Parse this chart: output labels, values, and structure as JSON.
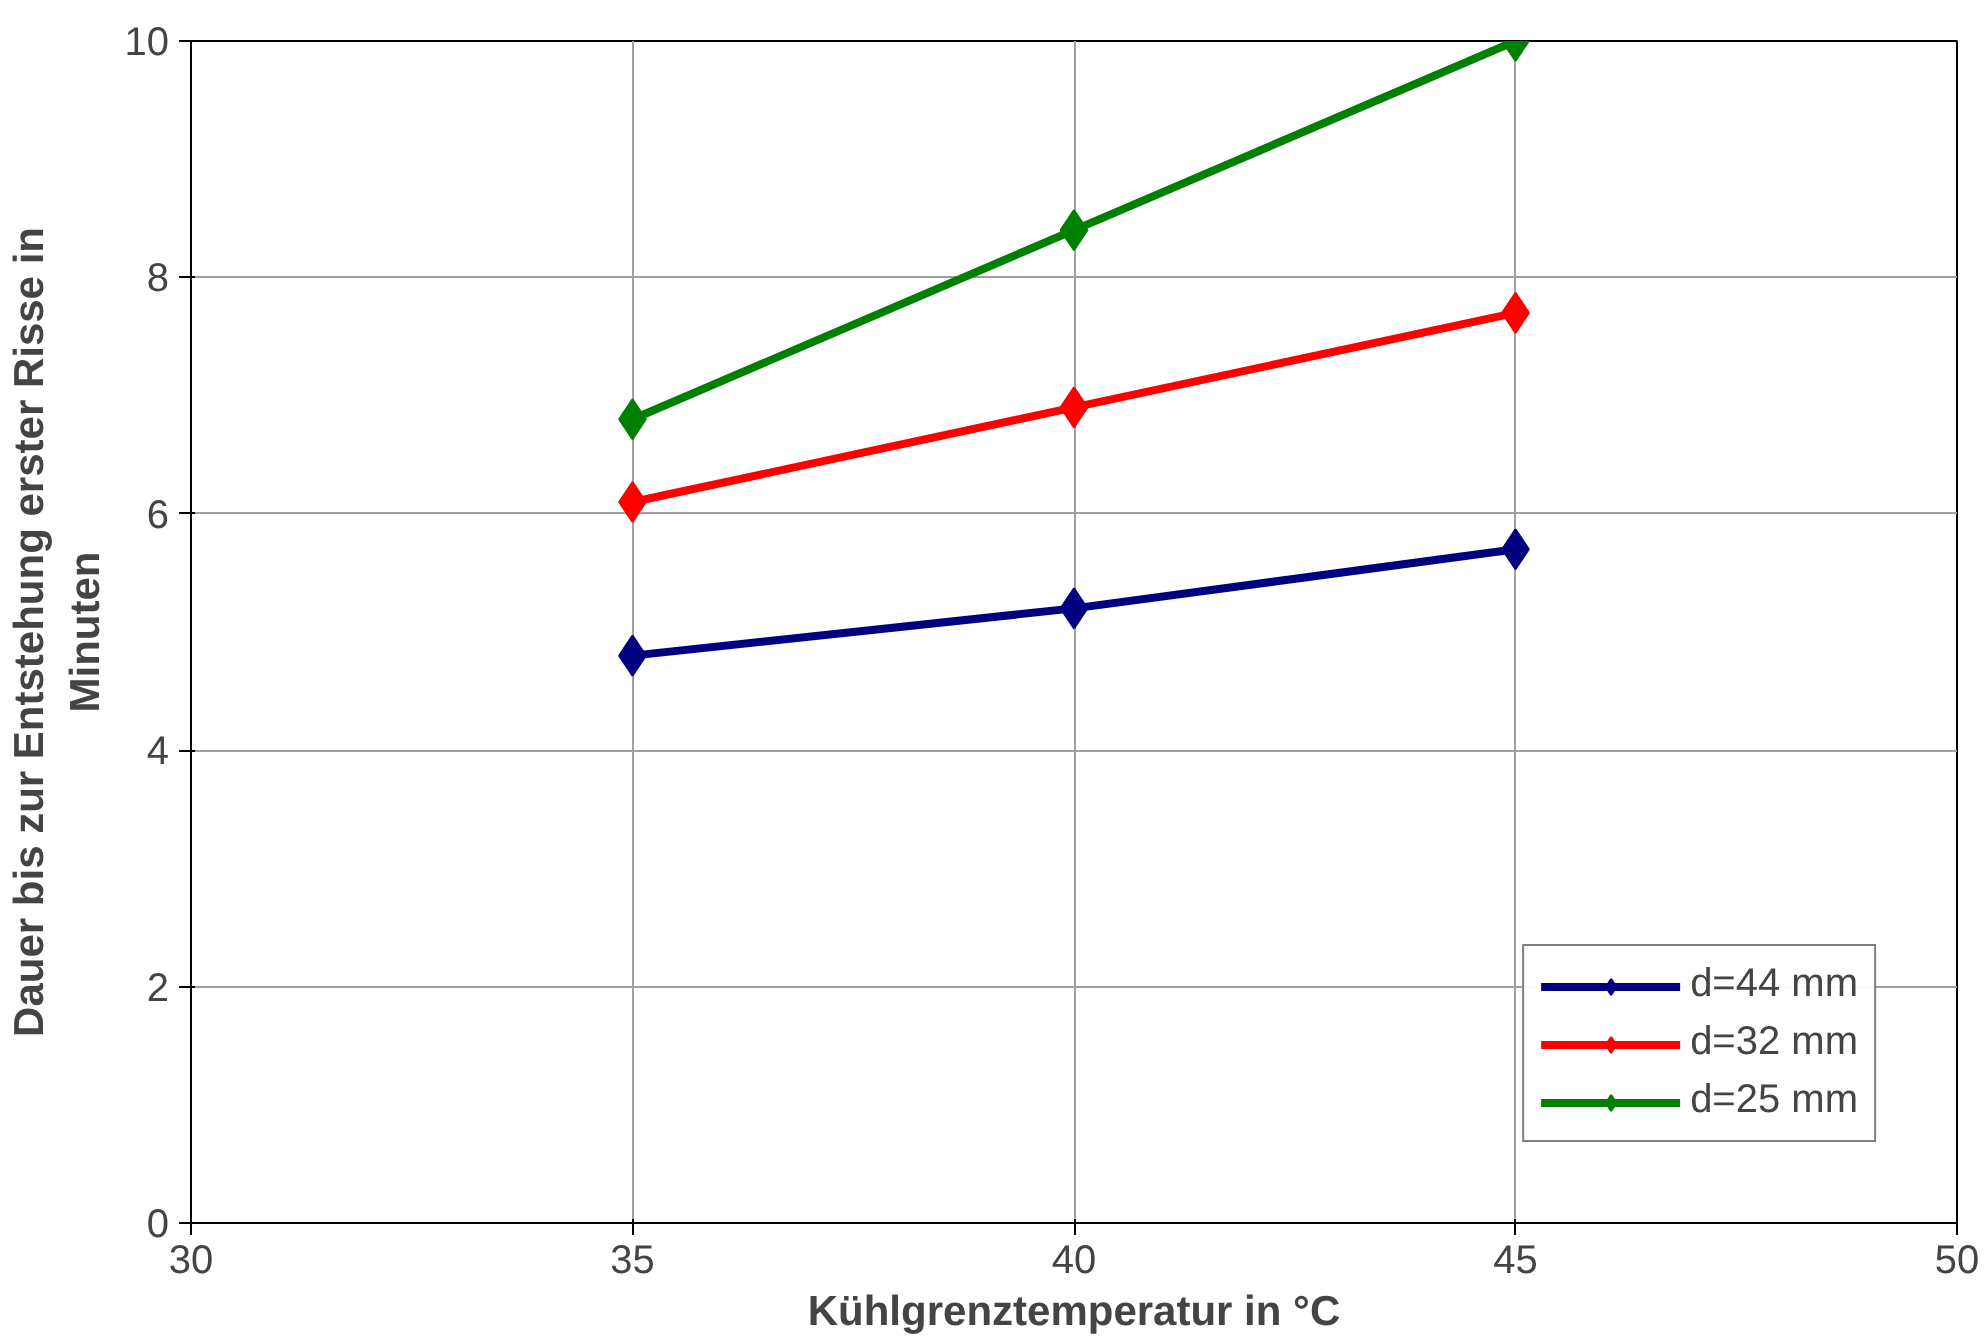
{
  "chart_data": {
    "type": "line",
    "xlabel": "Kühlgrenztemperatur in °C",
    "ylabel": "Dauer bis zur Entstehung erster Risse in Minuten",
    "x": [
      35,
      40,
      45
    ],
    "series": [
      {
        "name": "d=44 mm",
        "color": "#000080",
        "values": [
          4.8,
          5.2,
          5.7
        ]
      },
      {
        "name": "d=32 mm",
        "color": "#ff0000",
        "values": [
          6.1,
          6.9,
          7.7
        ]
      },
      {
        "name": "d=25 mm",
        "color": "#008000",
        "values": [
          6.8,
          8.4,
          10.0
        ]
      }
    ],
    "xlim": [
      30,
      50
    ],
    "xticks": [
      30,
      35,
      40,
      45,
      50
    ],
    "ylim": [
      0,
      10
    ],
    "yticks": [
      0,
      2,
      4,
      6,
      8,
      10
    ],
    "grid": true,
    "legend": "bottom right",
    "marker": "diamond",
    "line_style": "solid"
  }
}
